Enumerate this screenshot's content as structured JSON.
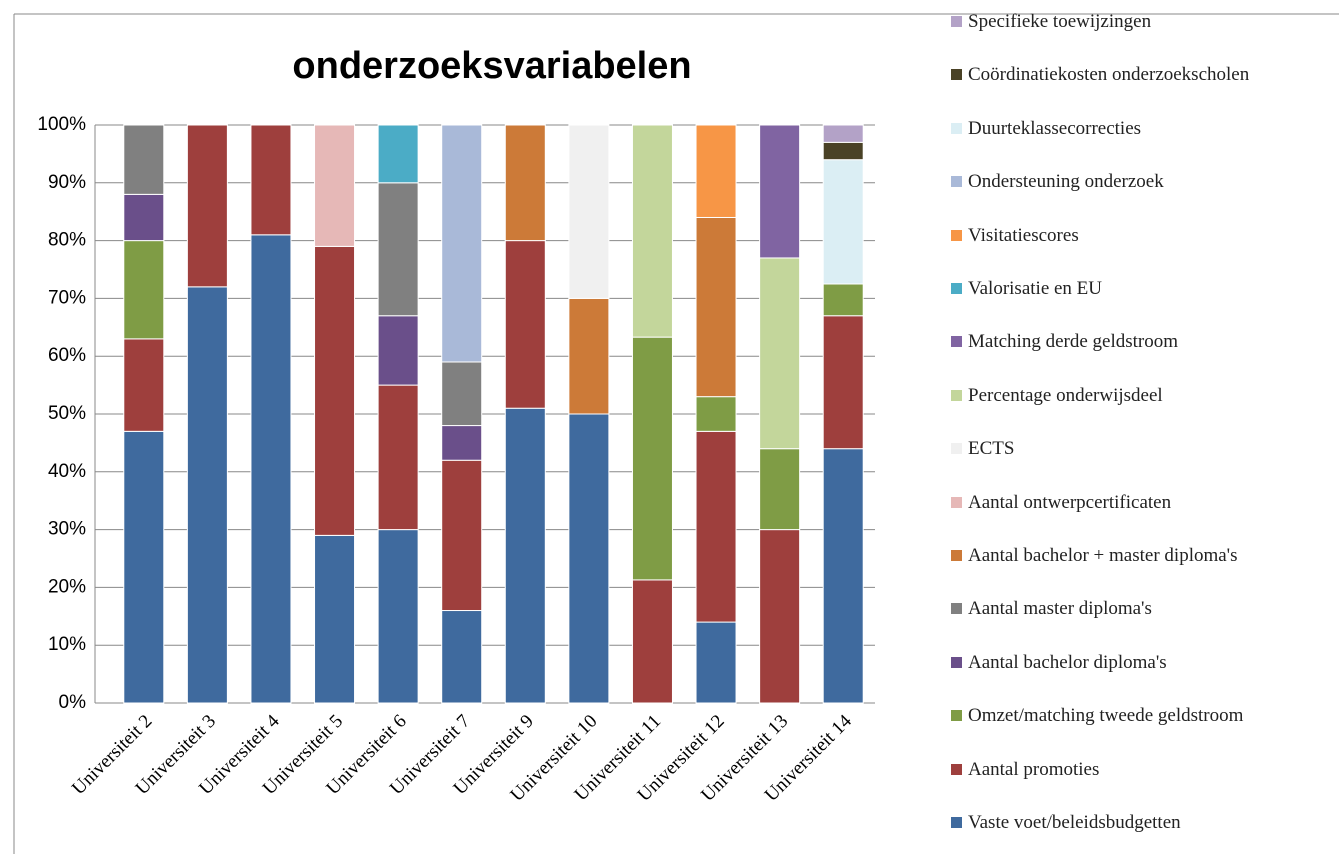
{
  "chart_data": {
    "type": "bar",
    "stacked": true,
    "title": "onderzoeksvariabelen",
    "categories": [
      "Universiteit 2",
      "Universiteit 3",
      "Universiteit 4",
      "Universiteit 5",
      "Universiteit 6",
      "Universiteit 7",
      "Universiteit 9",
      "Universiteit 10",
      "Universiteit 11",
      "Universiteit 12",
      "Universiteit 13",
      "Universiteit 14"
    ],
    "ylim": [
      0,
      100
    ],
    "yticks": [
      {
        "value": 0,
        "label": "0%"
      },
      {
        "value": 10,
        "label": "10%"
      },
      {
        "value": 20,
        "label": "20%"
      },
      {
        "value": 30,
        "label": "30%"
      },
      {
        "value": 40,
        "label": "40%"
      },
      {
        "value": 50,
        "label": "50%"
      },
      {
        "value": 60,
        "label": "60%"
      },
      {
        "value": 70,
        "label": "70%"
      },
      {
        "value": 80,
        "label": "80%"
      },
      {
        "value": 90,
        "label": "90%"
      },
      {
        "value": 100,
        "label": "100%"
      }
    ],
    "grid": true,
    "series": [
      {
        "name": "Vaste voet/beleidsbudgetten",
        "color": "#3f6a9e",
        "values": [
          47,
          72,
          81,
          29,
          30,
          16,
          51,
          50,
          0,
          14,
          0,
          44
        ]
      },
      {
        "name": "Aantal promoties",
        "color": "#9e3f3d",
        "values": [
          16,
          28,
          19,
          50,
          25,
          26,
          29,
          0,
          21.3,
          33,
          30,
          23
        ]
      },
      {
        "name": "Omzet/matching tweede geldstroom",
        "color": "#7f9c45",
        "values": [
          17,
          0,
          0,
          0,
          0,
          0,
          0,
          0,
          42,
          6,
          14,
          5.5
        ]
      },
      {
        "name": "Aantal bachelor diploma's",
        "color": "#6a4f8a",
        "values": [
          8,
          0,
          0,
          0,
          12,
          6,
          0,
          0,
          0,
          0,
          0,
          0
        ]
      },
      {
        "name": "Aantal master diploma's",
        "color": "#808080",
        "values": [
          12,
          0,
          0,
          0,
          23,
          11,
          0,
          0,
          0,
          0,
          0,
          0
        ]
      },
      {
        "name": "Aantal bachelor + master diploma's",
        "color": "#cc7a38",
        "values": [
          0,
          0,
          0,
          0,
          0,
          0,
          20,
          20,
          0,
          31,
          0,
          0
        ]
      },
      {
        "name": "Aantal ontwerpcertificaten",
        "color": "#e6b8b7",
        "values": [
          0,
          0,
          0,
          21,
          0,
          0,
          0,
          0,
          0,
          0,
          0,
          0
        ]
      },
      {
        "name": "ECTS",
        "color": "#f0f0f0",
        "values": [
          0,
          0,
          0,
          0,
          0,
          0,
          0,
          30,
          0,
          0,
          0,
          0
        ]
      },
      {
        "name": "Percentage onderwijsdeel",
        "color": "#c3d69b",
        "values": [
          0,
          0,
          0,
          0,
          0,
          0,
          0,
          0,
          36.7,
          0,
          33,
          0
        ]
      },
      {
        "name": "Matching derde geldstroom",
        "color": "#8064a2",
        "values": [
          0,
          0,
          0,
          0,
          0,
          0,
          0,
          0,
          0,
          0,
          23,
          0
        ]
      },
      {
        "name": "Valorisatie en EU",
        "color": "#4bacc6",
        "values": [
          0,
          0,
          0,
          0,
          10,
          0,
          0,
          0,
          0,
          0,
          0,
          0
        ]
      },
      {
        "name": "Visitatiescores",
        "color": "#f79646",
        "values": [
          0,
          0,
          0,
          0,
          0,
          0,
          0,
          0,
          0,
          16,
          0,
          0
        ]
      },
      {
        "name": "Ondersteuning onderzoek",
        "color": "#a9b9d8",
        "values": [
          0,
          0,
          0,
          0,
          0,
          41,
          0,
          0,
          0,
          0,
          0,
          0
        ]
      },
      {
        "name": "Duurteklassecorrecties",
        "color": "#dbeef4",
        "values": [
          0,
          0,
          0,
          0,
          0,
          0,
          0,
          0,
          0,
          0,
          0,
          21.5
        ]
      },
      {
        "name": "Coördinatiekosten onderzoekscholen",
        "color": "#4a4226",
        "values": [
          0,
          0,
          0,
          0,
          0,
          0,
          0,
          0,
          0,
          0,
          0,
          3
        ]
      },
      {
        "name": "Specifieke toewijzingen",
        "color": "#b3a2c7",
        "values": [
          0,
          0,
          0,
          0,
          0,
          0,
          0,
          0,
          0,
          0,
          0,
          3
        ]
      }
    ]
  }
}
